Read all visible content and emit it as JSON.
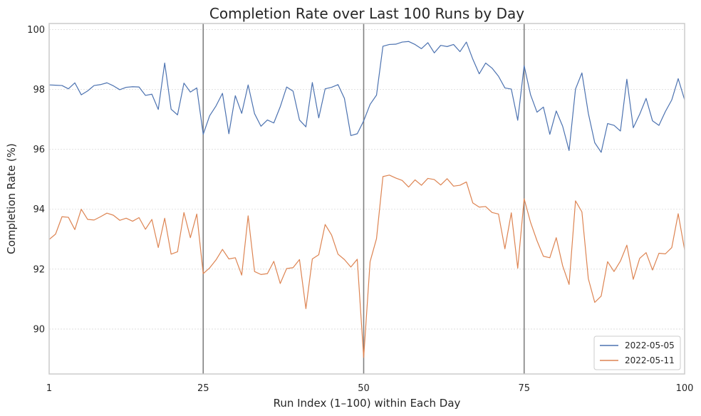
{
  "chart_data": {
    "type": "line",
    "title": "Completion Rate over Last 100 Runs by Day",
    "xlabel": "Run Index (1–100) within Each Day",
    "ylabel": "Completion Rate (%)",
    "xlim": [
      1,
      100
    ],
    "ylim": [
      88.5,
      100.2
    ],
    "xticks": [
      1,
      25,
      50,
      75,
      100
    ],
    "yticks": [
      90,
      92,
      94,
      96,
      98,
      100
    ],
    "grid": "horizontal-dotted",
    "vlines": [
      25,
      50,
      75
    ],
    "legend_position": "lower-right",
    "series": [
      {
        "name": "2022-05-05",
        "color": "#4c72b0",
        "values": [
          98.15,
          98.14,
          98.13,
          98.02,
          98.22,
          97.82,
          97.95,
          98.13,
          98.16,
          98.22,
          98.12,
          97.99,
          98.07,
          98.09,
          98.08,
          97.8,
          97.84,
          97.33,
          98.88,
          97.34,
          97.15,
          98.21,
          97.91,
          98.05,
          96.5,
          97.12,
          97.45,
          97.87,
          96.52,
          97.79,
          97.2,
          98.15,
          97.19,
          96.77,
          96.98,
          96.88,
          97.42,
          98.08,
          97.94,
          96.98,
          96.75,
          98.23,
          97.05,
          98.02,
          98.07,
          98.16,
          97.7,
          96.46,
          96.52,
          96.95,
          97.5,
          97.81,
          99.44,
          99.5,
          99.51,
          99.58,
          99.6,
          99.5,
          99.36,
          99.56,
          99.22,
          99.47,
          99.43,
          99.5,
          99.26,
          99.58,
          99.01,
          98.52,
          98.88,
          98.71,
          98.44,
          98.05,
          98.01,
          96.97,
          98.79,
          97.82,
          97.24,
          97.41,
          96.5,
          97.28,
          96.77,
          95.96,
          98.01,
          98.55,
          97.2,
          96.22,
          95.9,
          96.86,
          96.8,
          96.61,
          98.34,
          96.72,
          97.17,
          97.7,
          96.95,
          96.8,
          97.26,
          97.65,
          98.36,
          97.65
        ]
      },
      {
        "name": "2022-05-11",
        "color": "#dd8452",
        "values": [
          92.99,
          93.17,
          93.75,
          93.73,
          93.32,
          94.0,
          93.66,
          93.64,
          93.75,
          93.87,
          93.8,
          93.63,
          93.7,
          93.6,
          93.72,
          93.33,
          93.66,
          92.72,
          93.7,
          92.5,
          92.58,
          93.89,
          93.05,
          93.84,
          91.85,
          92.04,
          92.31,
          92.66,
          92.34,
          92.38,
          91.8,
          93.78,
          91.92,
          91.82,
          91.85,
          92.26,
          91.52,
          92.02,
          92.05,
          92.32,
          90.68,
          92.34,
          92.48,
          93.49,
          93.14,
          92.5,
          92.32,
          92.07,
          92.33,
          89.05,
          92.25,
          93.02,
          95.09,
          95.14,
          95.04,
          94.96,
          94.74,
          94.98,
          94.8,
          95.03,
          94.99,
          94.81,
          95.02,
          94.77,
          94.8,
          94.91,
          94.21,
          94.07,
          94.09,
          93.89,
          93.84,
          92.68,
          93.88,
          92.03,
          94.35,
          93.56,
          92.95,
          92.43,
          92.38,
          93.05,
          92.11,
          91.49,
          94.28,
          93.91,
          91.68,
          90.89,
          91.1,
          92.25,
          91.92,
          92.27,
          92.8,
          91.66,
          92.36,
          92.55,
          91.97,
          92.53,
          92.51,
          92.72,
          93.85,
          92.64
        ]
      }
    ]
  }
}
